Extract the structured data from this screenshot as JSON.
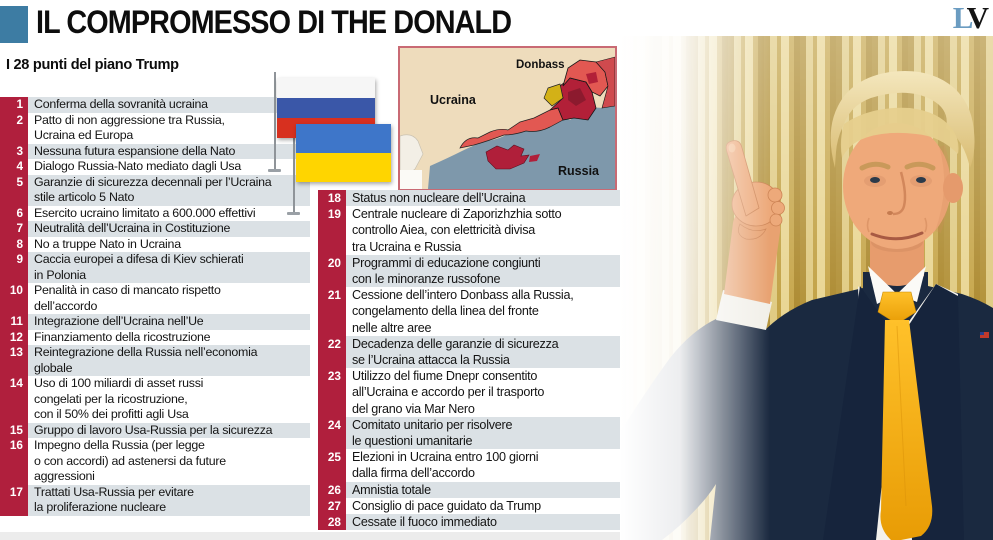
{
  "masthead": {
    "l": "L",
    "v": "V"
  },
  "header": {
    "title": "IL COMPROMESSO DI THE DONALD",
    "subtitle": "I 28 punti del piano Trump"
  },
  "colors": {
    "accent_blue_square": "#3d7ca3",
    "number_strip_red": "#b01f3d",
    "row_shade_gray": "#dbe1e5",
    "masthead_blue": "#6b9cc1",
    "map_land_beige": "#eedcbc",
    "map_sea_slate": "#7e98ab",
    "map_oblast_red": "#e25852",
    "map_crimea_crimson": "#b01f3a",
    "map_patch_yellow": "#d3b117",
    "flag_russia": [
      "#f6f6f6",
      "#3a57a8",
      "#d7301f"
    ],
    "flag_ukraine": [
      "#3e76c9",
      "#ffd500"
    ],
    "suit_navy": "#1a2940",
    "tie_gold": "#f5b10d"
  },
  "map": {
    "labels": {
      "ucraina": "Ucraina",
      "donbass": "Donbass",
      "russia": "Russia"
    }
  },
  "lists": {
    "left": {
      "items": [
        {
          "num": "1",
          "text": "Conferma della sovranità ucraina"
        },
        {
          "num": "2",
          "text": "Patto di non aggressione tra Russia,\nUcraina ed Europa"
        },
        {
          "num": "3",
          "text": "Nessuna futura espansione della Nato"
        },
        {
          "num": "4",
          "text": "Dialogo Russia-Nato mediato dagli Usa"
        },
        {
          "num": "5",
          "text": "Garanzie di sicurezza decennali per l’Ucraina\nstile articolo 5 Nato"
        },
        {
          "num": "6",
          "text": "Esercito ucraino limitato a 600.000 effettivi"
        },
        {
          "num": "7",
          "text": "Neutralità dell’Ucraina in Costituzione"
        },
        {
          "num": "8",
          "text": "No a truppe Nato in Ucraina"
        },
        {
          "num": "9",
          "text": "Caccia europei a difesa di Kiev schierati\nin Polonia"
        },
        {
          "num": "10",
          "text": "Penalità in caso di mancato rispetto\ndell’accordo"
        },
        {
          "num": "11",
          "text": "Integrazione dell’Ucraina nell’Ue"
        },
        {
          "num": "12",
          "text": "Finanziamento della ricostruzione"
        },
        {
          "num": "13",
          "text": "Reintegrazione della Russia nell’economia\nglobale"
        },
        {
          "num": "14",
          "text": "Uso di 100 miliardi di asset russi\ncongelati per la ricostruzione,\ncon il 50% dei profitti agli Usa"
        },
        {
          "num": "15",
          "text": "Gruppo di lavoro Usa-Russia per la sicurezza"
        },
        {
          "num": "16",
          "text": "Impegno della Russia (per legge\no con accordi) ad astenersi da future\naggressioni"
        },
        {
          "num": "17",
          "text": "Trattati Usa-Russia per evitare\nla proliferazione nucleare"
        }
      ]
    },
    "right": {
      "items": [
        {
          "num": "18",
          "text": "Status non nucleare dell’Ucraina"
        },
        {
          "num": "19",
          "text": "Centrale nucleare di Zaporizhzhia sotto\ncontrollo Aiea, con elettricità divisa\ntra Ucraina e Russia"
        },
        {
          "num": "20",
          "text": "Programmi di educazione congiunti\ncon le minoranze russofone"
        },
        {
          "num": "21",
          "text": "Cessione dell’intero Donbass alla Russia,\ncongelamento della linea del fronte\nnelle altre aree"
        },
        {
          "num": "22",
          "text": "Decadenza delle garanzie di sicurezza\nse l’Ucraina attacca la Russia"
        },
        {
          "num": "23",
          "text": "Utilizzo del fiume Dnepr consentito\nall’Ucraina e accordo per il trasporto\ndel grano via Mar Nero"
        },
        {
          "num": "24",
          "text": "Comitato unitario per risolvere\nle questioni umanitarie"
        },
        {
          "num": "25",
          "text": "Elezioni in Ucraina entro 100 giorni\ndalla firma dell’accordo"
        },
        {
          "num": "26",
          "text": "Amnistia totale"
        },
        {
          "num": "27",
          "text": "Consiglio di pace guidato da Trump"
        },
        {
          "num": "28",
          "text": "Cessate il fuoco immediato"
        }
      ]
    }
  }
}
